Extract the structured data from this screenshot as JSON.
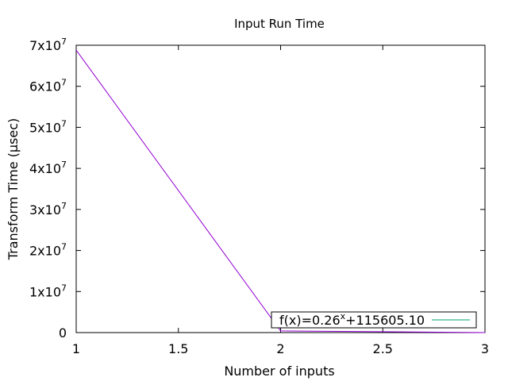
{
  "chart_data": {
    "type": "line",
    "title": "Input Run Time",
    "xlabel": "Number of inputs",
    "ylabel": "Transform Time (µsec)",
    "xlim": [
      1,
      3
    ],
    "ylim": [
      0,
      70000000
    ],
    "x_ticks": [
      {
        "value": 1,
        "label": "1"
      },
      {
        "value": 1.5,
        "label": "1.5"
      },
      {
        "value": 2,
        "label": "2"
      },
      {
        "value": 2.5,
        "label": "2.5"
      },
      {
        "value": 3,
        "label": "3"
      }
    ],
    "y_ticks": [
      {
        "value": 0,
        "label": "0",
        "base": "0",
        "exp": ""
      },
      {
        "value": 10000000,
        "label": "1x10^7",
        "base": "1x10",
        "exp": "7"
      },
      {
        "value": 20000000,
        "label": "2x10^7",
        "base": "2x10",
        "exp": "7"
      },
      {
        "value": 30000000,
        "label": "3x10^7",
        "base": "3x10",
        "exp": "7"
      },
      {
        "value": 40000000,
        "label": "4x10^7",
        "base": "4x10",
        "exp": "7"
      },
      {
        "value": 50000000,
        "label": "5x10^7",
        "base": "5x10",
        "exp": "7"
      },
      {
        "value": 60000000,
        "label": "6x10^7",
        "base": "6x10",
        "exp": "7"
      },
      {
        "value": 70000000,
        "label": "7x10^7",
        "base": "7x10",
        "exp": "7"
      }
    ],
    "series": [
      {
        "name": "",
        "color": "#9400d3",
        "x": [
          1,
          2,
          3
        ],
        "y": [
          68800000,
          400000,
          0
        ]
      }
    ],
    "legend": {
      "position": "bottom-right",
      "entries": [
        {
          "text_before": "f(x)=0.26",
          "text_sup": "x",
          "text_after": "+115605.10",
          "color": "#009e73"
        }
      ]
    },
    "grid": false
  }
}
